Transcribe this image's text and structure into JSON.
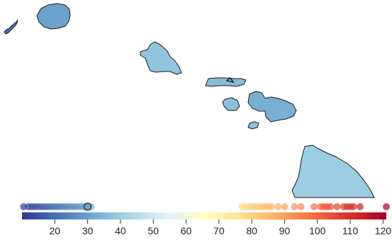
{
  "legend": {
    "scale_min": 10,
    "scale_max": 121,
    "ticks": [
      {
        "value": 20,
        "label": "20"
      },
      {
        "value": 30,
        "label": "30"
      },
      {
        "value": 40,
        "label": "40"
      },
      {
        "value": 50,
        "label": "50"
      },
      {
        "value": 60,
        "label": "60"
      },
      {
        "value": 70,
        "label": "70"
      },
      {
        "value": 80,
        "label": "80"
      },
      {
        "value": 90,
        "label": "90"
      },
      {
        "value": 100,
        "label": "100"
      },
      {
        "value": 110,
        "label": "110"
      },
      {
        "value": 120,
        "label": "120"
      }
    ],
    "color_stops": [
      "#313695",
      "#4575b4",
      "#74add1",
      "#abd9e9",
      "#e0f3f8",
      "#ffffbf",
      "#fee090",
      "#fdae61",
      "#f46d43",
      "#d73027",
      "#a50026"
    ],
    "values": [
      10.5,
      12,
      13,
      14,
      15,
      16,
      17,
      18,
      19,
      20,
      21,
      22,
      23,
      24,
      25,
      26,
      27,
      28,
      29,
      31,
      77,
      78,
      79,
      80,
      81,
      82,
      83,
      84,
      85,
      86,
      88,
      90,
      93,
      95,
      99,
      101,
      102,
      103,
      104,
      106,
      108,
      109,
      110,
      111,
      113,
      121
    ],
    "highlighted_value": 30
  },
  "islands": [
    {
      "name": "niihau",
      "value": 22
    },
    {
      "name": "kauai",
      "value": 30
    },
    {
      "name": "oahu",
      "value": 38
    },
    {
      "name": "molokai",
      "value": 36
    },
    {
      "name": "lanai",
      "value": 37
    },
    {
      "name": "maui",
      "value": 33
    },
    {
      "name": "kahoolawe",
      "value": 37
    },
    {
      "name": "hawaii",
      "value": 40
    }
  ]
}
